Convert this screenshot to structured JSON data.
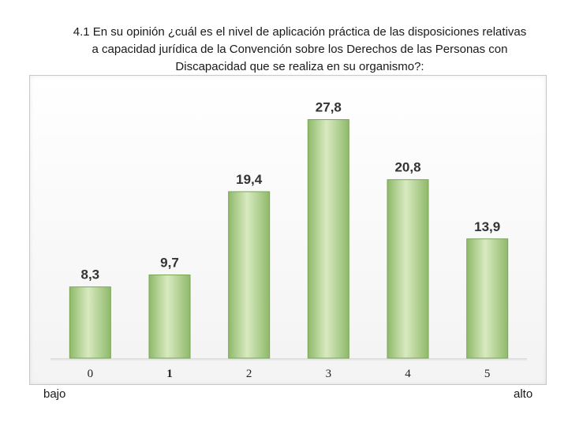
{
  "title_lines": [
    "4.1  En su opinión ¿cuál es el nivel de aplicación práctica de las disposiciones relativas",
    "a capacidad jurídica de la Convención sobre los Derechos de las Personas con",
    "Discapacidad que se realiza en su organismo?:"
  ],
  "scale_words": {
    "low": "bajo",
    "high": "alto"
  },
  "colors": {
    "bar_top": "#d8eac0",
    "bar_bottom": "#8fb96a",
    "bar_edge": "#7aa655"
  },
  "chart_data": {
    "type": "bar",
    "categories": [
      "0",
      "1",
      "2",
      "3",
      "4",
      "5"
    ],
    "values": [
      8.3,
      9.7,
      19.4,
      27.8,
      20.8,
      13.9
    ],
    "value_labels": [
      "8,3",
      "9,7",
      "19,4",
      "27,8",
      "20,8",
      "13,9"
    ],
    "ylim": [
      0,
      30
    ],
    "grid": false,
    "legend": "none"
  }
}
